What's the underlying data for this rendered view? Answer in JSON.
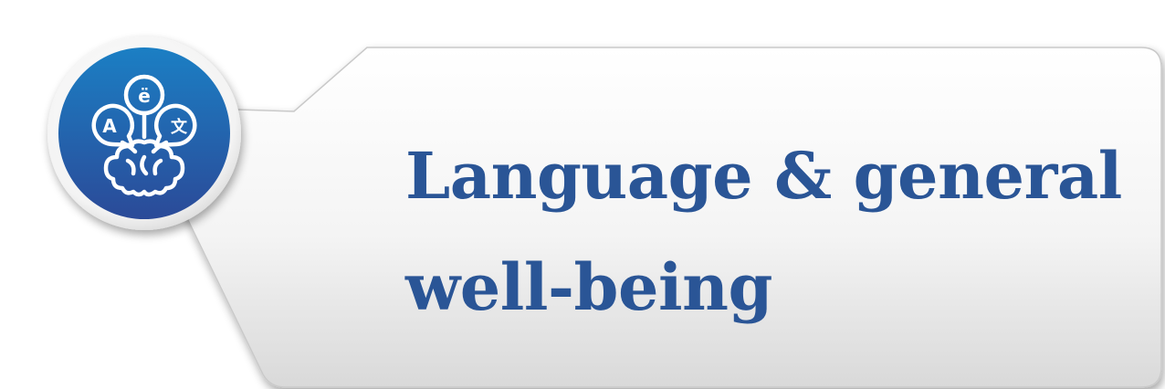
{
  "banner": {
    "title_line_1": "Language & general",
    "title_line_2": "well-being",
    "icon": "language-brain-icon",
    "icon_glyphs": [
      "A",
      "ë",
      "文"
    ]
  },
  "colors": {
    "title_text": "#2a5596",
    "badge_top": "#1b7fc4",
    "badge_bottom": "#2a4b9a",
    "panel_top": "#ffffff",
    "panel_bottom": "#dcdcdc"
  }
}
